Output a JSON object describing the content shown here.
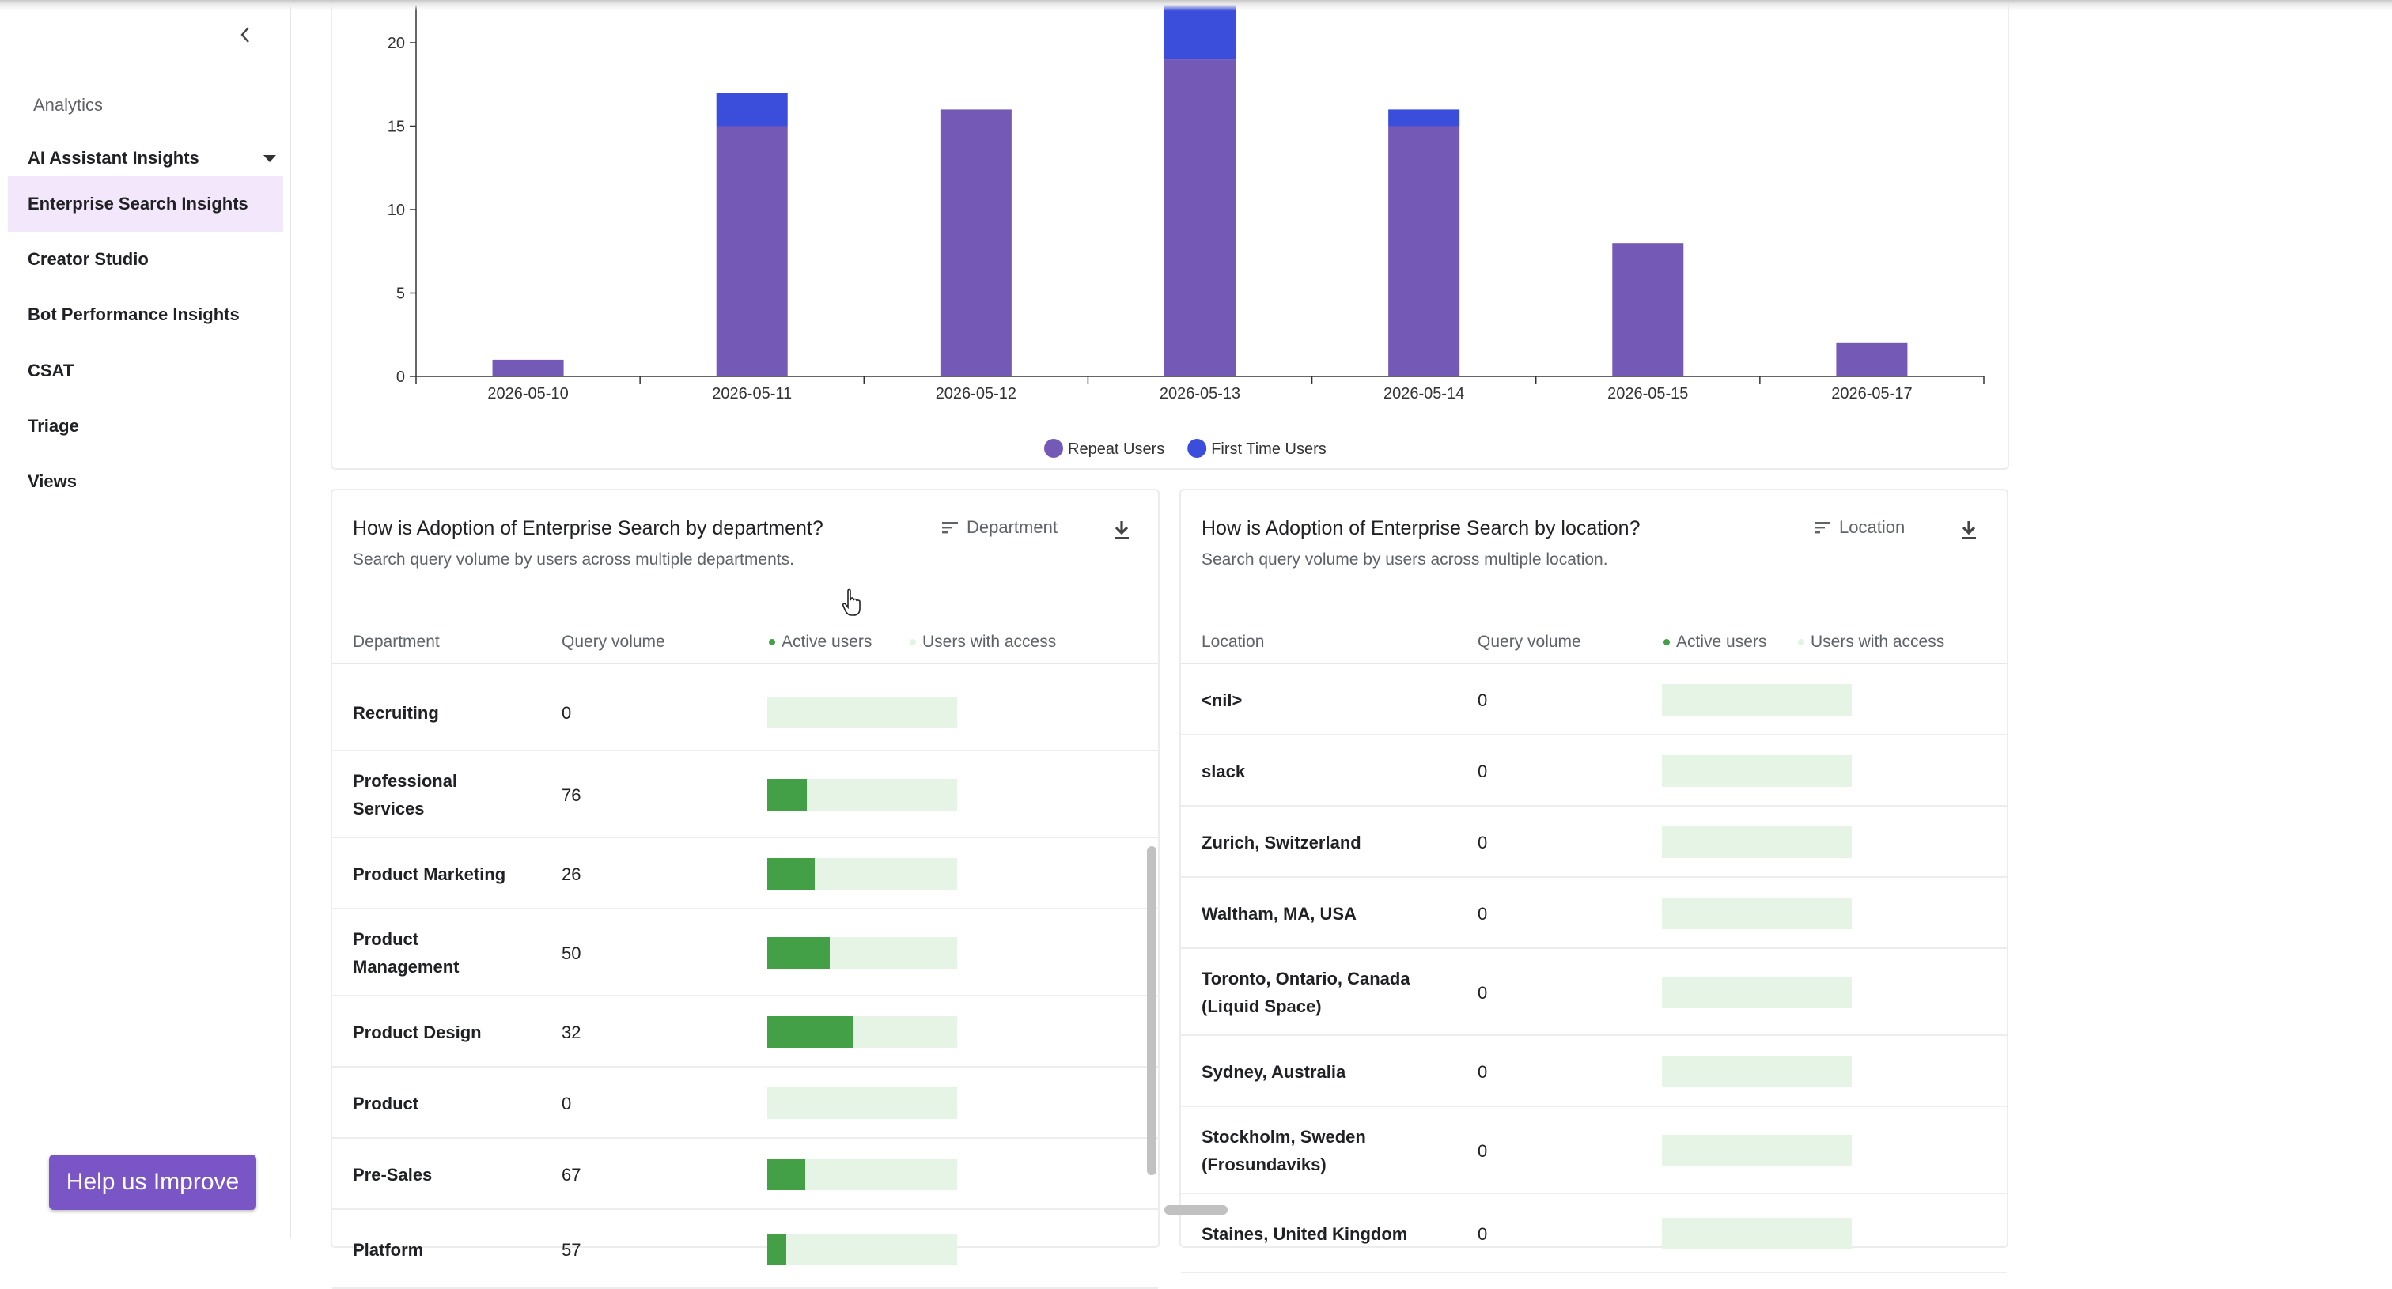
{
  "sidebar": {
    "section_title": "Analytics",
    "group_label": "AI Assistant Insights",
    "items": [
      {
        "label": "Enterprise Search Insights"
      },
      {
        "label": "Creator Studio"
      },
      {
        "label": "Bot Performance Insights"
      },
      {
        "label": "CSAT"
      },
      {
        "label": "Triage"
      },
      {
        "label": "Views"
      }
    ],
    "help_button": "Help us Improve"
  },
  "chart_data": {
    "type": "bar",
    "stacked": true,
    "categories": [
      "2026-05-10",
      "2026-05-11",
      "2026-05-12",
      "2026-05-13",
      "2026-05-14",
      "2026-05-15",
      "2026-05-17"
    ],
    "series": [
      {
        "name": "Repeat Users",
        "color": "#7459b7",
        "values": [
          1,
          15,
          16,
          19,
          15,
          8,
          2
        ]
      },
      {
        "name": "First Time Users",
        "color": "#3b4ddb",
        "values": [
          0,
          2,
          0,
          4,
          1,
          0,
          0
        ]
      }
    ],
    "yticks": [
      0,
      5,
      10,
      15,
      20
    ],
    "ylim": [
      0,
      22
    ],
    "legend_position": "bottom-center"
  },
  "dept_card": {
    "title": "How is Adoption of Enterprise Search by department?",
    "subtitle": "Search query volume by users across multiple departments.",
    "sort_label": "Department",
    "columns": {
      "name": "Department",
      "qv": "Query volume",
      "active": "Active users",
      "access": "Users with access"
    },
    "rows": [
      {
        "name": "Recruiting",
        "qv": "0",
        "active_fraction": 0
      },
      {
        "name": "Professional Services",
        "qv": "76",
        "active_fraction": 0.21
      },
      {
        "name": "Product Marketing",
        "qv": "26",
        "active_fraction": 0.25
      },
      {
        "name": "Product Management",
        "qv": "50",
        "active_fraction": 0.33
      },
      {
        "name": "Product Design",
        "qv": "32",
        "active_fraction": 0.45
      },
      {
        "name": "Product",
        "qv": "0",
        "active_fraction": 0
      },
      {
        "name": "Pre-Sales",
        "qv": "67",
        "active_fraction": 0.2
      },
      {
        "name": "Platform",
        "qv": "57",
        "active_fraction": 0.1
      }
    ]
  },
  "loc_card": {
    "title": "How is Adoption of Enterprise Search by location?",
    "subtitle": "Search query volume by users across multiple location.",
    "sort_label": "Location",
    "columns": {
      "name": "Location",
      "qv": "Query volume",
      "active": "Active users",
      "access": "Users with access"
    },
    "rows": [
      {
        "name": "<nil>",
        "qv": "0",
        "active_fraction": 0
      },
      {
        "name": "slack",
        "qv": "0",
        "active_fraction": 0
      },
      {
        "name": "Zurich, Switzerland",
        "qv": "0",
        "active_fraction": 0
      },
      {
        "name": "Waltham, MA, USA",
        "qv": "0",
        "active_fraction": 0
      },
      {
        "name": "Toronto, Ontario, Canada (Liquid Space)",
        "qv": "0",
        "active_fraction": 0
      },
      {
        "name": "Sydney, Australia",
        "qv": "0",
        "active_fraction": 0
      },
      {
        "name": "Stockholm, Sweden (Frosundaviks)",
        "qv": "0",
        "active_fraction": 0
      },
      {
        "name": "Staines, United Kingdom",
        "qv": "0",
        "active_fraction": 0
      }
    ]
  }
}
